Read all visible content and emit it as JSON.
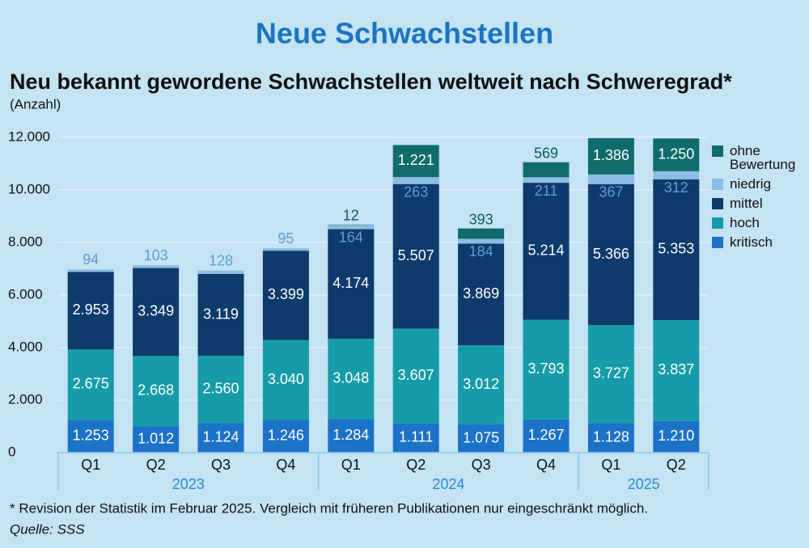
{
  "chart_data": {
    "type": "stacked_bar",
    "title": "Neue Schwachstellen",
    "subtitle": "Neu bekannt gewordene Schwachstellen weltweit nach Schweregrad*",
    "y_label": "(Anzahl)",
    "categories": [
      "Q1",
      "Q2",
      "Q3",
      "Q4",
      "Q1",
      "Q2",
      "Q3",
      "Q4",
      "Q1",
      "Q2"
    ],
    "groups": [
      "2023",
      "2024",
      "2025"
    ],
    "ylim": [
      0,
      12000
    ],
    "yticks": [
      0,
      {
        "value": 2000,
        "label": "2.000"
      },
      {
        "value": 4000,
        "label": "4.000"
      },
      {
        "value": 6000,
        "label": "6.000"
      },
      {
        "value": 8000,
        "label": "8.000"
      },
      {
        "value": 10000,
        "label": "10.000"
      },
      {
        "value": 12000,
        "label": "12.000"
      }
    ],
    "grid": true,
    "series": [
      {
        "name": "kritisch",
        "color": "#1c72c6",
        "values": [
          1253,
          1012,
          1124,
          1246,
          1284,
          1111,
          1075,
          1267,
          1128,
          1210
        ],
        "value_labels": [
          "1.253",
          "1.012",
          "1.124",
          "1.246",
          "1.284",
          "1.111",
          "1.075",
          "1.267",
          "1.128",
          "1.210"
        ]
      },
      {
        "name": "hoch",
        "color": "#169ca8",
        "values": [
          2675,
          2668,
          2560,
          3040,
          3048,
          3607,
          3012,
          3793,
          3727,
          3837
        ],
        "value_labels": [
          "2.675",
          "2.668",
          "2.560",
          "3.040",
          "3.048",
          "3.607",
          "3.012",
          "3.793",
          "3.727",
          "3.837"
        ]
      },
      {
        "name": "mittel",
        "color": "#0e3b6c",
        "values": [
          2953,
          3349,
          3119,
          3399,
          4174,
          5507,
          3869,
          5214,
          5366,
          5353
        ],
        "value_labels": [
          "2.953",
          "3.349",
          "3.119",
          "3.399",
          "4.174",
          "5.507",
          "3.869",
          "5.214",
          "5.366",
          "5.353"
        ]
      },
      {
        "name": "niedrig",
        "color": "#8cbde2",
        "values": [
          94,
          103,
          128,
          95,
          164,
          263,
          184,
          211,
          367,
          312
        ]
      },
      {
        "name": "ohne Bewertung",
        "color": "#0f6c6b",
        "values": [
          null,
          null,
          null,
          null,
          12,
          1221,
          393,
          569,
          1386,
          1250
        ],
        "value_labels": [
          null,
          null,
          null,
          null,
          "12",
          "1.221",
          "393",
          "569",
          "1.386",
          "1.250"
        ]
      }
    ],
    "footnote": "* Revision der Statistik im Februar 2025. Vergleich mit früheren Publikationen nur eingeschränkt möglich.",
    "source": "Quelle: SSS"
  }
}
